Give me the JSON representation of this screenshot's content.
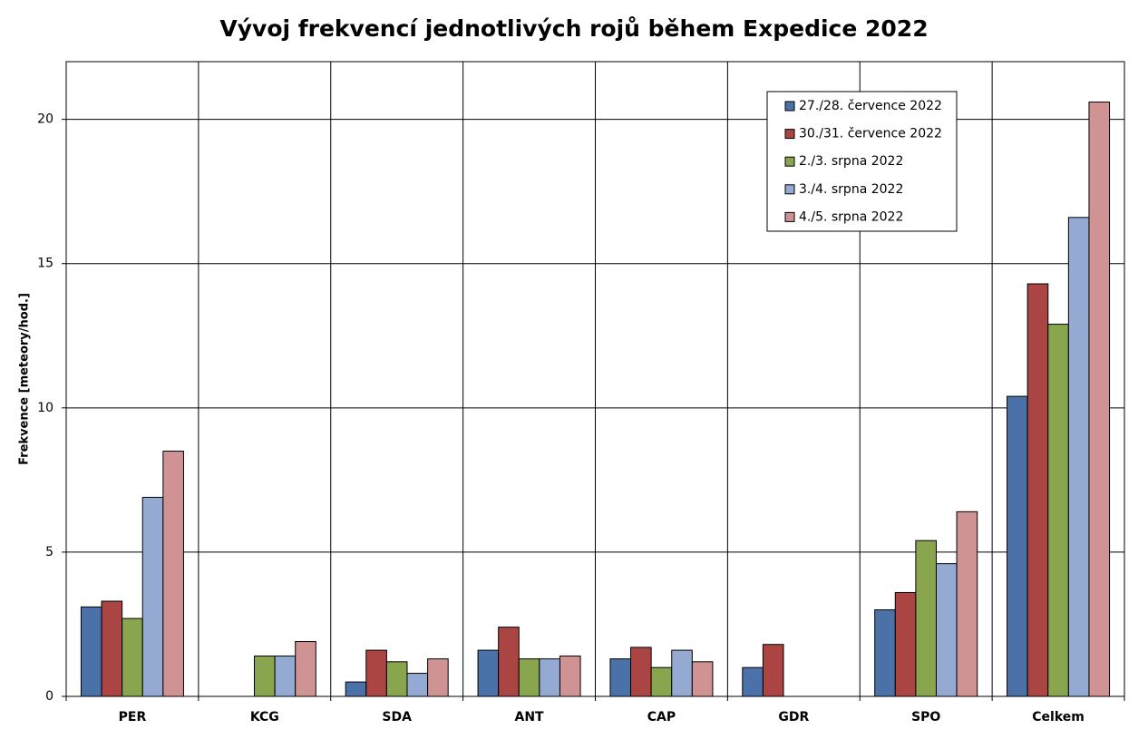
{
  "chart_data": {
    "type": "bar",
    "title": "Vývoj frekvencí jednotlivých rojů během Expedice 2022",
    "y_label": "Frekvence [meteory/hod.]",
    "categories": [
      "PER",
      "KCG",
      "SDA",
      "ANT",
      "CAP",
      "GDR",
      "SPO",
      "Celkem"
    ],
    "series": [
      {
        "name": "27./28. července 2022",
        "color": "#4a72a8",
        "values": [
          3.1,
          0,
          0.5,
          1.6,
          1.3,
          1.0,
          3.0,
          10.4
        ]
      },
      {
        "name": "30./31. července 2022",
        "color": "#aa4543",
        "values": [
          3.3,
          0,
          1.6,
          2.4,
          1.7,
          1.8,
          3.6,
          14.3
        ]
      },
      {
        "name": "2./3. srpna 2022",
        "color": "#89a54e",
        "values": [
          2.7,
          1.4,
          1.2,
          1.3,
          1.0,
          0,
          5.4,
          12.9
        ]
      },
      {
        "name": "3./4. srpna 2022",
        "color": "#95aad2",
        "values": [
          6.9,
          1.4,
          0.8,
          1.3,
          1.6,
          0,
          4.6,
          16.6
        ]
      },
      {
        "name": "4./5. srpna 2022",
        "color": "#d09393",
        "values": [
          8.5,
          1.9,
          1.3,
          1.4,
          1.2,
          0,
          6.4,
          20.6
        ]
      }
    ],
    "ylim": [
      0,
      22
    ],
    "yticks": [
      0,
      5,
      10,
      15,
      20
    ],
    "grid": true,
    "legend": "upper-right"
  }
}
